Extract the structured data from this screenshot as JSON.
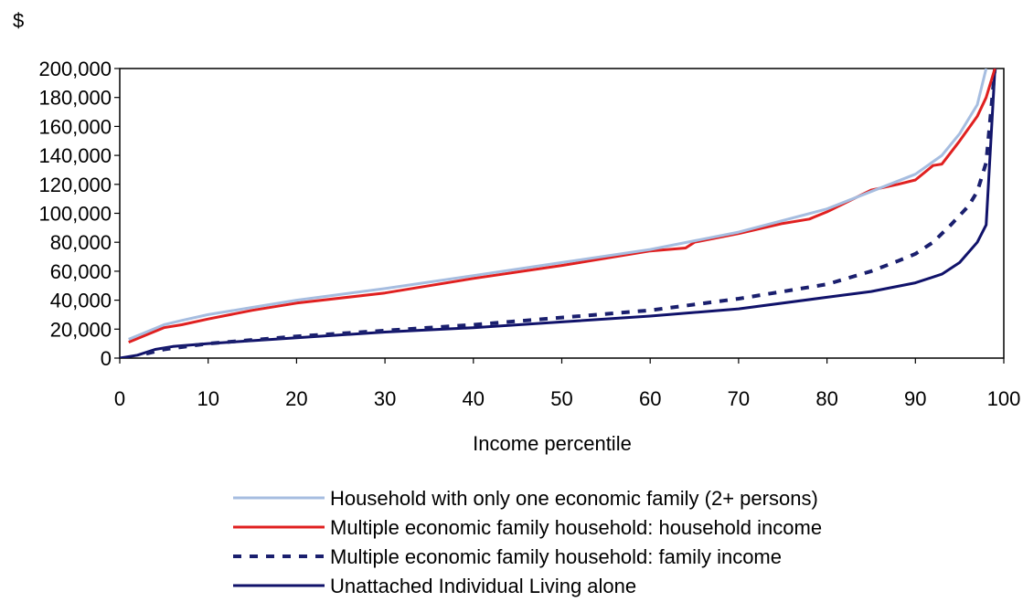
{
  "chart_data": {
    "type": "line",
    "ylabel": "$",
    "xlabel": "Income percentile",
    "xlim": [
      0,
      100
    ],
    "ylim": [
      0,
      200000
    ],
    "x_ticks": [
      0,
      10,
      20,
      30,
      40,
      50,
      60,
      70,
      80,
      90,
      100
    ],
    "y_ticks": [
      0,
      20000,
      40000,
      60000,
      80000,
      100000,
      120000,
      140000,
      160000,
      180000,
      200000
    ],
    "x_tick_labels": [
      "0",
      "10",
      "20",
      "30",
      "40",
      "50",
      "60",
      "70",
      "80",
      "90",
      "100"
    ],
    "y_tick_labels": [
      "0",
      "20,000",
      "40,000",
      "60,000",
      "80,000",
      "100,000",
      "120,000",
      "140,000",
      "160,000",
      "180,000",
      "200,000"
    ],
    "grid": false,
    "legend_position": "bottom",
    "series": [
      {
        "name": "Household with only one economic family (2+ persons)",
        "color": "#a6bde0",
        "style": "solid",
        "points": [
          [
            1,
            13000
          ],
          [
            3,
            18000
          ],
          [
            5,
            23000
          ],
          [
            7,
            26000
          ],
          [
            10,
            30000
          ],
          [
            15,
            35000
          ],
          [
            20,
            40000
          ],
          [
            30,
            48000
          ],
          [
            40,
            57000
          ],
          [
            50,
            66000
          ],
          [
            60,
            75000
          ],
          [
            70,
            87000
          ],
          [
            80,
            103000
          ],
          [
            85,
            115000
          ],
          [
            90,
            127000
          ],
          [
            93,
            140000
          ],
          [
            95,
            155000
          ],
          [
            97,
            175000
          ],
          [
            98,
            200000
          ]
        ]
      },
      {
        "name": "Multiple economic family household: household income",
        "color": "#e02020",
        "style": "solid",
        "points": [
          [
            1,
            11000
          ],
          [
            3,
            16000
          ],
          [
            5,
            21000
          ],
          [
            7,
            23000
          ],
          [
            10,
            27000
          ],
          [
            15,
            33000
          ],
          [
            20,
            38000
          ],
          [
            30,
            45000
          ],
          [
            40,
            55000
          ],
          [
            50,
            64000
          ],
          [
            60,
            74000
          ],
          [
            64,
            76000
          ],
          [
            65,
            80000
          ],
          [
            70,
            86000
          ],
          [
            75,
            93000
          ],
          [
            78,
            96000
          ],
          [
            80,
            101000
          ],
          [
            85,
            116000
          ],
          [
            88,
            120000
          ],
          [
            90,
            123000
          ],
          [
            92,
            133000
          ],
          [
            93,
            134000
          ],
          [
            95,
            150000
          ],
          [
            97,
            167000
          ],
          [
            98,
            180000
          ],
          [
            99,
            200000
          ]
        ]
      },
      {
        "name": "Multiple economic family household: family income",
        "color": "#1a1f6e",
        "style": "dashed",
        "points": [
          [
            3,
            3000
          ],
          [
            5,
            6000
          ],
          [
            10,
            10000
          ],
          [
            20,
            15000
          ],
          [
            30,
            19000
          ],
          [
            40,
            23000
          ],
          [
            50,
            28000
          ],
          [
            60,
            33000
          ],
          [
            70,
            41000
          ],
          [
            80,
            51000
          ],
          [
            85,
            60000
          ],
          [
            88,
            67000
          ],
          [
            90,
            72000
          ],
          [
            92,
            80000
          ],
          [
            94,
            92000
          ],
          [
            96,
            105000
          ],
          [
            97,
            115000
          ],
          [
            98,
            135000
          ],
          [
            99,
            200000
          ]
        ]
      },
      {
        "name": "Unattached Individual Living alone",
        "color": "#10126a",
        "style": "solid",
        "points": [
          [
            0,
            0
          ],
          [
            2,
            2000
          ],
          [
            4,
            6000
          ],
          [
            6,
            8000
          ],
          [
            10,
            10000
          ],
          [
            20,
            14000
          ],
          [
            30,
            18000
          ],
          [
            40,
            21000
          ],
          [
            50,
            25000
          ],
          [
            60,
            29000
          ],
          [
            70,
            34000
          ],
          [
            80,
            42000
          ],
          [
            85,
            46000
          ],
          [
            90,
            52000
          ],
          [
            93,
            58000
          ],
          [
            95,
            66000
          ],
          [
            97,
            80000
          ],
          [
            98,
            92000
          ],
          [
            99,
            200000
          ]
        ]
      }
    ]
  }
}
